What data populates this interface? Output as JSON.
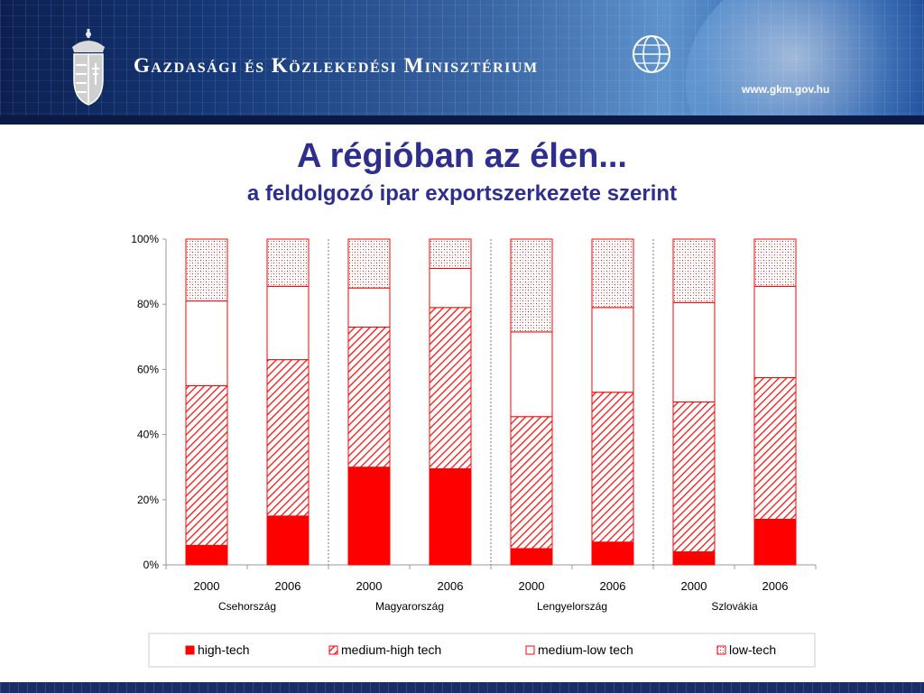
{
  "header": {
    "ministry_name": "Gazdasági és Közlekedési Minisztérium",
    "url": "www.gkm.gov.hu"
  },
  "slide": {
    "title": "A régióban az élen...",
    "subtitle": "a feldolgozó ipar exportszerkezete szerint"
  },
  "colors": {
    "accent": "#ff0000",
    "title": "#2e2e8f"
  },
  "chart_data": {
    "type": "bar",
    "stacked": true,
    "categories": [
      "2000",
      "2006",
      "2000",
      "2006",
      "2000",
      "2006",
      "2000",
      "2006"
    ],
    "groups": [
      {
        "label": "Csehország",
        "count": 2
      },
      {
        "label": "Magyarország",
        "count": 2
      },
      {
        "label": "Lengyelország",
        "count": 2
      },
      {
        "label": "Szlovákia",
        "count": 2
      }
    ],
    "series": [
      {
        "name": "high-tech",
        "pattern": "solid",
        "values": [
          6,
          15,
          30,
          29.5,
          5,
          7,
          4,
          14
        ]
      },
      {
        "name": "medium-high tech",
        "pattern": "diagonal",
        "values": [
          49,
          48,
          43,
          49.5,
          40.5,
          46,
          46,
          43.5
        ]
      },
      {
        "name": "medium-low tech",
        "pattern": "empty",
        "values": [
          26,
          22.5,
          12,
          12,
          26,
          26,
          30.5,
          28
        ]
      },
      {
        "name": "low-tech",
        "pattern": "dotted",
        "values": [
          19,
          14.5,
          15,
          9,
          28.5,
          21,
          19.5,
          14.5
        ]
      }
    ],
    "y_ticks": [
      "0%",
      "20%",
      "40%",
      "60%",
      "80%",
      "100%"
    ],
    "ylim": [
      0,
      100
    ],
    "legend": "bottom",
    "grid": false
  }
}
